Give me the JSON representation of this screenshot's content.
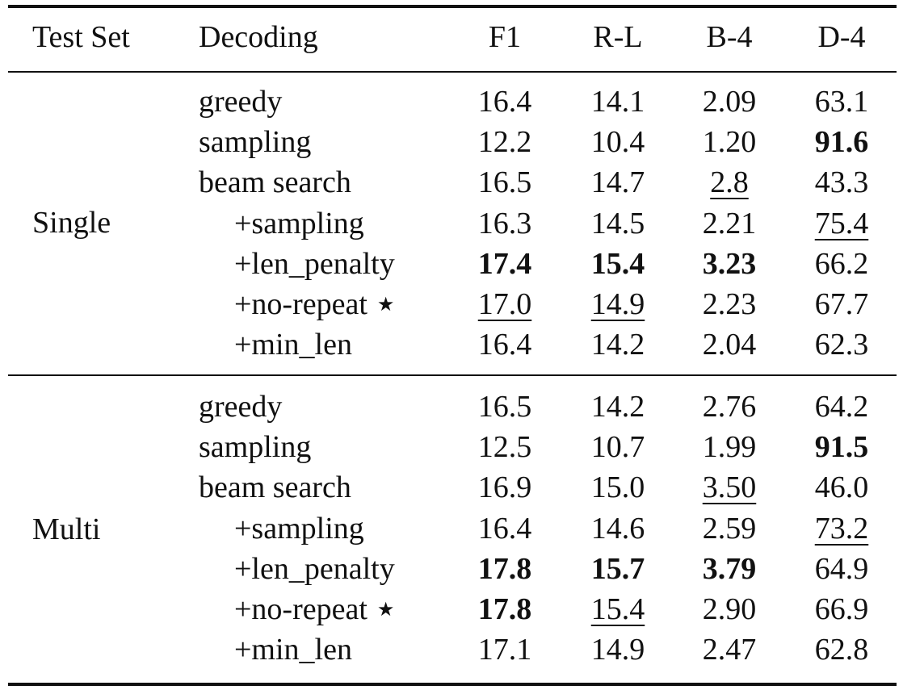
{
  "header": {
    "test_set": "Test Set",
    "decoding": "Decoding",
    "f1": "F1",
    "rl": "R-L",
    "b4": "B-4",
    "d4": "D-4"
  },
  "groups": [
    {
      "name": "Single",
      "rows": [
        {
          "decoding": "greedy",
          "f1": "16.4",
          "rl": "14.1",
          "b4": "2.09",
          "d4": "63.1"
        },
        {
          "decoding": "sampling",
          "f1": "12.2",
          "rl": "10.4",
          "b4": "1.20",
          "d4": "91.6"
        },
        {
          "decoding": "beam search",
          "f1": "16.5",
          "rl": "14.7",
          "b4": "2.8",
          "d4": "43.3"
        },
        {
          "decoding": "+sampling",
          "f1": "16.3",
          "rl": "14.5",
          "b4": "2.21",
          "d4": "75.4"
        },
        {
          "decoding": "+len_penalty",
          "f1": "17.4",
          "rl": "15.4",
          "b4": "3.23",
          "d4": "66.2"
        },
        {
          "decoding": "+no-repeat",
          "star": "★",
          "f1": "17.0",
          "rl": "14.9",
          "b4": "2.23",
          "d4": "67.7"
        },
        {
          "decoding": "+min_len",
          "f1": "16.4",
          "rl": "14.2",
          "b4": "2.04",
          "d4": "62.3"
        }
      ]
    },
    {
      "name": "Multi",
      "rows": [
        {
          "decoding": "greedy",
          "f1": "16.5",
          "rl": "14.2",
          "b4": "2.76",
          "d4": "64.2"
        },
        {
          "decoding": "sampling",
          "f1": "12.5",
          "rl": "10.7",
          "b4": "1.99",
          "d4": "91.5"
        },
        {
          "decoding": "beam search",
          "f1": "16.9",
          "rl": "15.0",
          "b4": "3.50",
          "d4": "46.0"
        },
        {
          "decoding": "+sampling",
          "f1": "16.4",
          "rl": "14.6",
          "b4": "2.59",
          "d4": "73.2"
        },
        {
          "decoding": "+len_penalty",
          "f1": "17.8",
          "rl": "15.7",
          "b4": "3.79",
          "d4": "64.9"
        },
        {
          "decoding": "+no-repeat",
          "star": "★",
          "f1": "17.8",
          "rl": "15.4",
          "b4": "2.90",
          "d4": "66.9"
        },
        {
          "decoding": "+min_len",
          "f1": "17.1",
          "rl": "14.9",
          "b4": "2.47",
          "d4": "62.8"
        }
      ]
    }
  ]
}
